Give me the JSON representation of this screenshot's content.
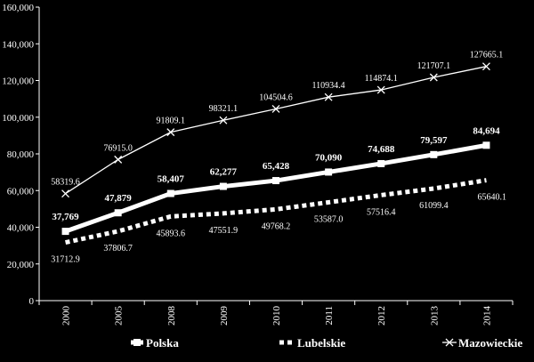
{
  "chart_data": {
    "type": "line",
    "title": "",
    "xlabel": "",
    "ylabel": "",
    "x": [
      "2000",
      "2005",
      "2008",
      "2009",
      "2010",
      "2011",
      "2012",
      "2013",
      "2014"
    ],
    "ylim": [
      0,
      160000
    ],
    "yticks": [
      "0",
      "20,000",
      "40,000",
      "60,000",
      "80,000",
      "100,000",
      "120,000",
      "140,000",
      "160,000"
    ],
    "ytick_values": [
      0,
      20000,
      40000,
      60000,
      80000,
      100000,
      120000,
      140000,
      160000
    ],
    "grid": false,
    "legend_position": "bottom",
    "series": [
      {
        "name": "Polska",
        "style": "thick-solid",
        "color": "#ffffff",
        "values": [
          37769,
          47879,
          58407,
          62277,
          65428,
          70090,
          74688,
          79597,
          84694
        ],
        "labels": [
          "37,769",
          "47,879",
          "58,407",
          "62,277",
          "65,428",
          "70,090",
          "74,688",
          "79,597",
          "84,694"
        ]
      },
      {
        "name": "Lubelskie",
        "style": "thick-dotted",
        "color": "#ffffff",
        "values": [
          31712.9,
          37806.7,
          45893.6,
          47551.9,
          49768.2,
          53587.0,
          57516.4,
          61099.4,
          65640.1
        ],
        "labels": [
          "31712.9",
          "37806.7",
          "45893.6",
          "47551.9",
          "49768.2",
          "53587.0",
          "57516.4",
          "61099.4",
          "65640.1"
        ]
      },
      {
        "name": "Mazowieckie",
        "style": "thin-x-markers",
        "color": "#ffffff",
        "values": [
          58319.6,
          76915.0,
          91809.1,
          98321.1,
          104504.6,
          110934.4,
          114874.1,
          121707.1,
          127665.1
        ],
        "labels": [
          "58319.6",
          "76915.0",
          "91809.1",
          "98321.1",
          "104504.6",
          "110934.4",
          "114874.1",
          "121707.1",
          "127665.1"
        ]
      }
    ]
  }
}
